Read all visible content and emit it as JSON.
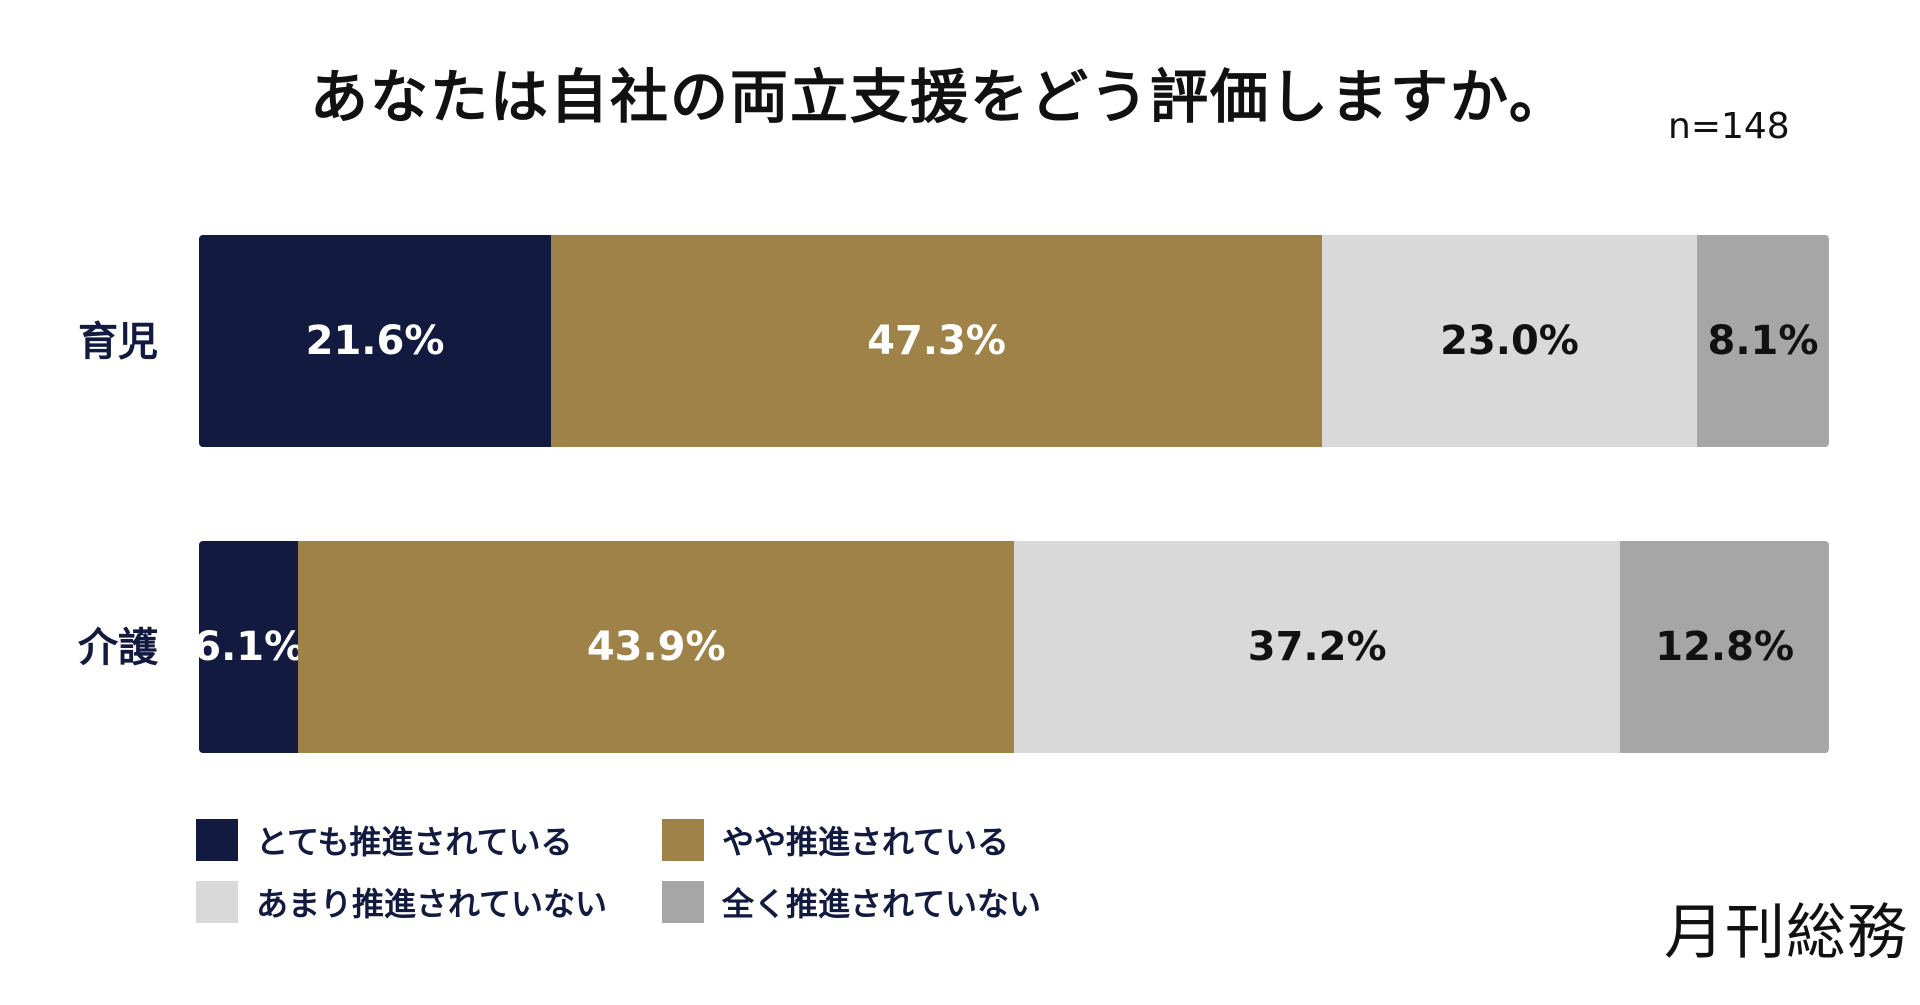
{
  "title": "あなたは自社の両立支援をどう評価しますか。",
  "sample_size": "n=148",
  "brand": "月刊総務",
  "colors": {
    "very_promoted": "#131a40",
    "somewhat_promoted": "#9e8248",
    "not_really_promoted": "#d9d9d9",
    "not_at_all_promoted": "#a6a6a6",
    "label_dark": "#111111",
    "label_light": "#ffffff"
  },
  "chart_data": {
    "type": "bar",
    "orientation": "horizontal",
    "stacked": true,
    "percent_stacked": true,
    "title": "あなたは自社の両立支援をどう評価しますか。",
    "categories": [
      "育児",
      "介護"
    ],
    "series": [
      {
        "name": "とても推進されている",
        "values": [
          21.6,
          6.1
        ],
        "labels": [
          "21.6%",
          "6.1%"
        ],
        "color": "#131a40",
        "label_color": "#ffffff"
      },
      {
        "name": "やや推進されている",
        "values": [
          47.3,
          43.9
        ],
        "labels": [
          "47.3%",
          "43.9%"
        ],
        "color": "#9e8248",
        "label_color": "#ffffff"
      },
      {
        "name": "あまり推進されていない",
        "values": [
          23.0,
          37.2
        ],
        "labels": [
          "23.0%",
          "37.2%"
        ],
        "color": "#d9d9d9",
        "label_color": "#111111"
      },
      {
        "name": "全く推進されていない",
        "values": [
          8.1,
          12.8
        ],
        "labels": [
          "8.1%",
          "12.8%"
        ],
        "color": "#a6a6a6",
        "label_color": "#111111"
      }
    ],
    "legend": {
      "position": "bottom-left",
      "items": [
        "とても推進されている",
        "やや推進されている",
        "あまり推進されていない",
        "全く推進されていない"
      ]
    },
    "grid": false
  }
}
